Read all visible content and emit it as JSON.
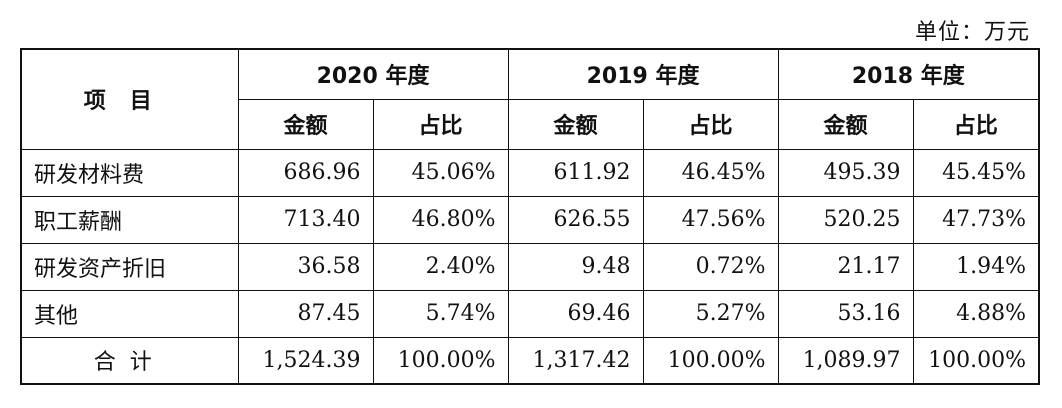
{
  "unit": "单位：万元",
  "header": {
    "item": "项目",
    "years": [
      "2020 年度",
      "2019 年度",
      "2018 年度"
    ],
    "amount": "金额",
    "ratio": "占比"
  },
  "rows": [
    {
      "label": "研发材料费",
      "values": [
        "686.96",
        "45.06%",
        "611.92",
        "46.45%",
        "495.39",
        "45.45%"
      ]
    },
    {
      "label": "职工薪酬",
      "values": [
        "713.40",
        "46.80%",
        "626.55",
        "47.56%",
        "520.25",
        "47.73%"
      ]
    },
    {
      "label": "研发资产折旧",
      "values": [
        "36.58",
        "2.40%",
        "9.48",
        "0.72%",
        "21.17",
        "1.94%"
      ]
    },
    {
      "label": "其他",
      "values": [
        "87.45",
        "5.74%",
        "69.46",
        "5.27%",
        "53.16",
        "4.88%"
      ]
    }
  ],
  "total": {
    "label": "合计",
    "values": [
      "1,524.39",
      "100.00%",
      "1,317.42",
      "100.00%",
      "1,089.97",
      "100.00%"
    ]
  }
}
